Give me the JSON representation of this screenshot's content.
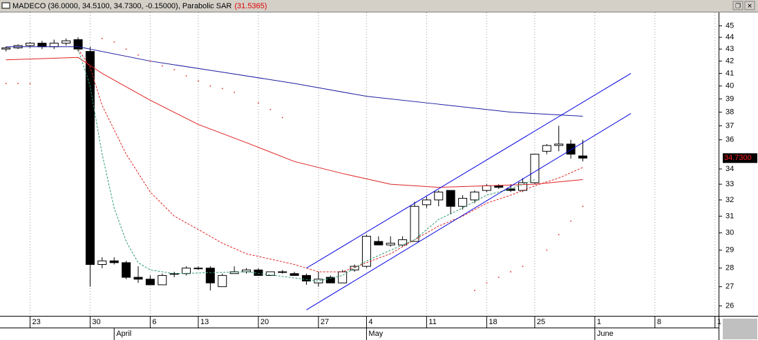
{
  "chart_data": {
    "type": "candlestick",
    "title": "MADECO (36.0000, 34.5100, 34.7300, -0.15000), Parabolic SAR",
    "title_note": "(31.5365)",
    "x": [
      0,
      1,
      2,
      3,
      4,
      5,
      6,
      7,
      8,
      9,
      10,
      11,
      12,
      13,
      14,
      15,
      16,
      17,
      18,
      19,
      20,
      21,
      22,
      23,
      24,
      25,
      26,
      27,
      28,
      29,
      30,
      31,
      32,
      33,
      34,
      35,
      36,
      37,
      38,
      39,
      40,
      41,
      42,
      43,
      44,
      45,
      46,
      47,
      48
    ],
    "open": [
      43.0,
      43.1,
      43.3,
      43.5,
      43.2,
      43.5,
      43.8,
      42.8,
      28.2,
      28.4,
      28.3,
      27.5,
      27.4,
      27.1,
      27.7,
      27.7,
      28.0,
      28.0,
      27.0,
      27.7,
      27.8,
      27.9,
      27.6,
      27.8,
      27.7,
      27.6,
      27.2,
      27.5,
      27.2,
      27.9,
      28.1,
      29.5,
      29.3,
      29.3,
      29.5,
      31.7,
      32.0,
      32.6,
      31.6,
      32.0,
      32.6,
      32.9,
      32.7,
      32.6,
      33.1,
      35.2,
      35.6,
      35.7,
      34.88
    ],
    "high": [
      43.2,
      43.4,
      43.6,
      43.7,
      43.8,
      43.9,
      44.0,
      43.2,
      28.6,
      28.6,
      28.4,
      28.1,
      27.6,
      27.7,
      27.8,
      28.1,
      28.1,
      28.1,
      27.7,
      28.1,
      28.0,
      28.0,
      27.8,
      27.9,
      27.8,
      27.7,
      27.8,
      27.6,
      27.9,
      28.2,
      29.9,
      29.8,
      29.8,
      29.8,
      31.9,
      32.2,
      32.6,
      32.6,
      32.3,
      32.6,
      33.0,
      33.0,
      33.0,
      33.4,
      35.0,
      35.7,
      37.0,
      36.0,
      36.0
    ],
    "low": [
      42.8,
      43.0,
      43.1,
      43.0,
      43.0,
      43.3,
      42.8,
      27.0,
      28.0,
      28.2,
      27.4,
      27.2,
      27.1,
      27.1,
      27.5,
      27.6,
      27.9,
      26.8,
      27.0,
      27.7,
      27.7,
      27.6,
      27.6,
      27.7,
      27.6,
      27.1,
      27.0,
      27.2,
      27.2,
      27.8,
      28.0,
      29.3,
      29.2,
      29.2,
      29.5,
      31.5,
      31.6,
      31.1,
      31.4,
      31.8,
      32.5,
      32.7,
      32.5,
      32.5,
      33.0,
      35.0,
      35.2,
      34.7,
      34.51
    ],
    "close": [
      43.1,
      43.3,
      43.5,
      43.2,
      43.5,
      43.7,
      43.0,
      28.2,
      28.4,
      28.3,
      27.5,
      27.4,
      27.1,
      27.6,
      27.7,
      28.0,
      28.0,
      27.2,
      27.6,
      27.8,
      27.9,
      27.6,
      27.8,
      27.8,
      27.6,
      27.3,
      27.4,
      27.2,
      27.8,
      28.1,
      29.8,
      29.3,
      29.4,
      29.6,
      31.6,
      32.0,
      32.5,
      31.6,
      32.1,
      32.5,
      32.9,
      32.8,
      32.6,
      33.1,
      35.0,
      35.6,
      35.7,
      35.0,
      34.73
    ],
    "up_color": "#ffffff",
    "down_color": "#000000",
    "log_scale": true,
    "xlim": [
      -0.5,
      59.3
    ],
    "xticks": [
      {
        "value": 2,
        "label": "23"
      },
      {
        "value": 7,
        "label": "30"
      },
      {
        "value": 12,
        "label": "6"
      },
      {
        "value": 16,
        "label": "13"
      },
      {
        "value": 21,
        "label": "20"
      },
      {
        "value": 26,
        "label": "27"
      },
      {
        "value": 30,
        "label": "4"
      },
      {
        "value": 35,
        "label": "11"
      },
      {
        "value": 40,
        "label": "18"
      },
      {
        "value": 44,
        "label": "25"
      },
      {
        "value": 49,
        "label": "1"
      },
      {
        "value": 54,
        "label": "8"
      },
      {
        "value": 59,
        "label": "1"
      }
    ],
    "month_labels": [
      {
        "value": 9,
        "label": "April"
      },
      {
        "value": 30,
        "label": "May"
      },
      {
        "value": 49,
        "label": "June"
      }
    ],
    "ylim": [
      25.5,
      46.2
    ],
    "yticks": [
      26,
      27,
      28,
      29,
      30,
      31,
      32,
      33,
      34,
      36,
      37,
      38,
      39,
      40,
      41,
      42,
      43,
      44,
      45
    ],
    "last_price": {
      "value": 34.73,
      "label": "34.7300"
    },
    "grid": true,
    "overlays": [
      {
        "type": "line",
        "color": "#1a1aa0",
        "dash": false,
        "x": [
          0,
          6,
          12,
          18,
          24,
          30,
          36,
          42,
          48
        ],
        "values": [
          43.2,
          43.2,
          42.0,
          41.1,
          40.2,
          39.2,
          38.6,
          38.0,
          37.7
        ]
      },
      {
        "type": "line",
        "color": "#e02020",
        "dash": false,
        "x": [
          0,
          6,
          8,
          12,
          16,
          20,
          24,
          28,
          32,
          36,
          40,
          44,
          48
        ],
        "values": [
          42.1,
          42.3,
          41.0,
          38.9,
          37.1,
          35.8,
          34.5,
          33.7,
          33.0,
          32.8,
          32.9,
          33.0,
          33.3
        ]
      },
      {
        "type": "line",
        "color": "#e02020",
        "dash": true,
        "x": [
          6,
          7,
          8,
          10,
          12,
          14,
          16,
          18,
          20,
          22,
          24,
          25,
          26,
          28,
          30,
          32,
          34,
          36,
          38,
          40,
          42,
          44,
          46,
          48
        ],
        "values": [
          43.0,
          41.5,
          38.5,
          35.0,
          32.5,
          31.0,
          30.2,
          29.4,
          28.8,
          28.5,
          28.2,
          28.0,
          27.8,
          27.8,
          28.3,
          28.8,
          29.6,
          30.4,
          31.0,
          31.8,
          32.3,
          32.9,
          33.4,
          34.1
        ]
      },
      {
        "type": "line",
        "color": "#2a9a6a",
        "dash": true,
        "x": [
          6,
          7,
          8,
          9,
          10,
          11,
          12,
          14,
          20,
          26,
          28,
          30,
          32,
          34,
          36,
          38,
          40,
          42,
          44
        ],
        "values": [
          43.0,
          40.0,
          35.0,
          31.5,
          29.5,
          28.3,
          27.9,
          27.7,
          27.8,
          27.3,
          27.6,
          28.4,
          29.0,
          29.6,
          30.8,
          31.5,
          32.3,
          32.7,
          33.3
        ]
      },
      {
        "type": "line",
        "color": "#0000e0",
        "dash": false,
        "x": [
          25,
          52
        ],
        "values": [
          28.0,
          41.0
        ]
      },
      {
        "type": "line",
        "color": "#0000e0",
        "dash": false,
        "x": [
          25,
          52
        ],
        "values": [
          25.8,
          37.9
        ]
      },
      {
        "type": "scatter",
        "color": "#e02020",
        "x": [
          0,
          1,
          2,
          8,
          9,
          10,
          11,
          12,
          13,
          14,
          15,
          16,
          17,
          18,
          19,
          21,
          22,
          23,
          39,
          40,
          41,
          42,
          43,
          45,
          46,
          47,
          48
        ],
        "values": [
          40.2,
          40.2,
          40.2,
          43.9,
          43.6,
          43.0,
          42.5,
          42.0,
          41.6,
          41.3,
          40.8,
          40.4,
          40.0,
          39.8,
          39.5,
          38.7,
          38.2,
          37.6,
          26.8,
          27.2,
          27.5,
          27.8,
          28.1,
          29.0,
          29.9,
          30.7,
          31.6
        ]
      }
    ]
  }
}
